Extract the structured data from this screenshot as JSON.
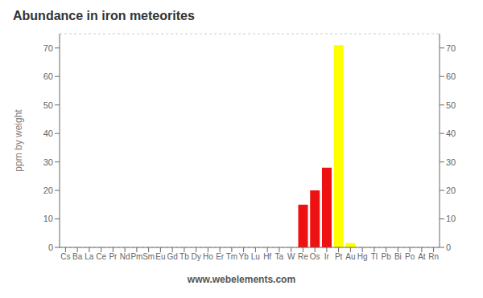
{
  "chart_data": {
    "type": "bar",
    "title": "Abundance in iron meteorites",
    "ylabel": "ppm by weight",
    "annotations": [
      "www.webelements.com"
    ],
    "categories": [
      "Cs",
      "Ba",
      "La",
      "Ce",
      "Pr",
      "Nd",
      "Pm",
      "Sm",
      "Eu",
      "Gd",
      "Tb",
      "Dy",
      "Ho",
      "Er",
      "Tm",
      "Yb",
      "Lu",
      "Hf",
      "Ta",
      "W",
      "Re",
      "Os",
      "Ir",
      "Pt",
      "Au",
      "Hg",
      "Tl",
      "Pb",
      "Bi",
      "Po",
      "At",
      "Rn"
    ],
    "values": [
      0.0,
      0.0,
      0.0,
      0.0,
      0.0,
      0.0,
      0.0,
      0.0,
      0.0,
      0.0,
      0.0,
      0.0,
      0.0,
      0.0,
      0.0,
      0.0,
      0.0,
      0.0,
      0.0,
      0.0,
      15.0,
      20.0,
      28.0,
      71.0,
      1.5,
      0.0,
      0.0,
      0.0,
      0.0,
      0.0,
      0.0,
      0.0
    ],
    "colors": [
      "#888888",
      "#888888",
      "#228822",
      "#228822",
      "#228822",
      "#228822",
      "#888888",
      "#888888",
      "#888888",
      "#228822",
      "#228822",
      "#228822",
      "#228822",
      "#228822",
      "#888888",
      "#888888",
      "#888888",
      "#aaaaaa",
      "#aaaaaa",
      "#aaaaaa",
      "#ee1111",
      "#ee1111",
      "#ee1111",
      "#ffff00",
      "#ffff00",
      "#aaaaaa",
      "#aaaaaa",
      "#aaaaaa",
      "#aaaaaa",
      "#aaaaaa",
      "#aaaaaa",
      "#aaaaaa"
    ],
    "ylim": [
      0,
      75
    ],
    "yticks": [
      0,
      10,
      20,
      30,
      40,
      50,
      60,
      70
    ],
    "grid": true
  }
}
